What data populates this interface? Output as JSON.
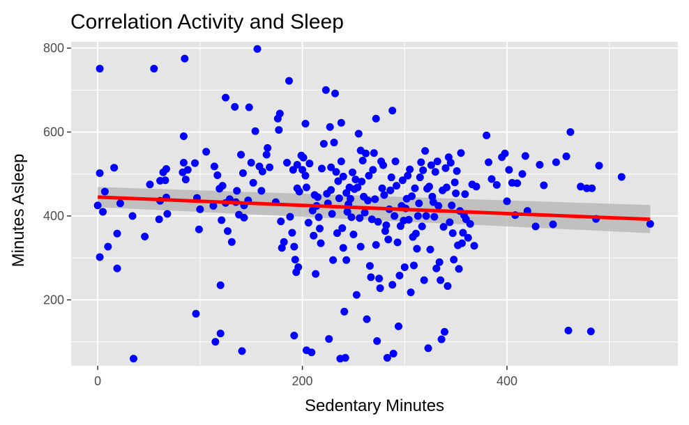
{
  "chart_data": {
    "type": "scatter",
    "title": "Correlation Activity and Sleep",
    "xlabel": "Sedentary Minutes",
    "ylabel": "Minutes Asleep",
    "xlim": [
      -26,
      567
    ],
    "ylim": [
      43,
      815
    ],
    "x_ticks": [
      0,
      200,
      400
    ],
    "x_tick_labels": [
      "0",
      "200",
      "400"
    ],
    "y_ticks": [
      200,
      400,
      600,
      800
    ],
    "y_tick_labels": [
      "200",
      "400",
      "600",
      "800"
    ],
    "grid": true,
    "panel_background": "#e5e5e5",
    "point_color": "#0000ff",
    "trend_color": "#ff0000",
    "ribbon_color": "#b3b3b3",
    "trend_line": {
      "type": "linear",
      "x": [
        0,
        540
      ],
      "y": [
        445,
        392
      ],
      "ci_lower": [
        421,
        359
      ],
      "ci_upper": [
        469,
        426
      ]
    },
    "points": [
      [
        2,
        751
      ],
      [
        2,
        502
      ],
      [
        2,
        302
      ],
      [
        0,
        425
      ],
      [
        5,
        410
      ],
      [
        7,
        458
      ],
      [
        10,
        327
      ],
      [
        16,
        515
      ],
      [
        19,
        358
      ],
      [
        19,
        275
      ],
      [
        22,
        430
      ],
      [
        34,
        400
      ],
      [
        35,
        60
      ],
      [
        46,
        351
      ],
      [
        51,
        475
      ],
      [
        55,
        751
      ],
      [
        60,
        392
      ],
      [
        61,
        484
      ],
      [
        61,
        436
      ],
      [
        64,
        504
      ],
      [
        66,
        485
      ],
      [
        67,
        512
      ],
      [
        67,
        444
      ],
      [
        68,
        405
      ],
      [
        83,
        504
      ],
      [
        84,
        590
      ],
      [
        84,
        527
      ],
      [
        85,
        775
      ],
      [
        86,
        487
      ],
      [
        88,
        510
      ],
      [
        95,
        526
      ],
      [
        96,
        167
      ],
      [
        97,
        443
      ],
      [
        99,
        368
      ],
      [
        100,
        416
      ],
      [
        106,
        553
      ],
      [
        113,
        424
      ],
      [
        114,
        518
      ],
      [
        115,
        100
      ],
      [
        117,
        497
      ],
      [
        119,
        465
      ],
      [
        120,
        235
      ],
      [
        120,
        120
      ],
      [
        121,
        390
      ],
      [
        122,
        472
      ],
      [
        125,
        682
      ],
      [
        125,
        431
      ],
      [
        127,
        364
      ],
      [
        129,
        440
      ],
      [
        131,
        338
      ],
      [
        134,
        660
      ],
      [
        135,
        433
      ],
      [
        136,
        460
      ],
      [
        138,
        403
      ],
      [
        140,
        546
      ],
      [
        141,
        78
      ],
      [
        142,
        502
      ],
      [
        143,
        396
      ],
      [
        143,
        425
      ],
      [
        147,
        437
      ],
      [
        148,
        659
      ],
      [
        150,
        527
      ],
      [
        152,
        479
      ],
      [
        154,
        602
      ],
      [
        156,
        798
      ],
      [
        158,
        518
      ],
      [
        160,
        460
      ],
      [
        161,
        506
      ],
      [
        165,
        546
      ],
      [
        166,
        562
      ],
      [
        168,
        516
      ],
      [
        174,
        433
      ],
      [
        176,
        632
      ],
      [
        177,
        605
      ],
      [
        178,
        644
      ],
      [
        179,
        387
      ],
      [
        180,
        324
      ],
      [
        182,
        338
      ],
      [
        185,
        527
      ],
      [
        187,
        722
      ],
      [
        188,
        398
      ],
      [
        190,
        360
      ],
      [
        191,
        510
      ],
      [
        192,
        115
      ],
      [
        192,
        327
      ],
      [
        193,
        296
      ],
      [
        194,
        266
      ],
      [
        195,
        522
      ],
      [
        195,
        466
      ],
      [
        196,
        278
      ],
      [
        197,
        458
      ],
      [
        199,
        544
      ],
      [
        200,
        510
      ],
      [
        201,
        539
      ],
      [
        203,
        620
      ],
      [
        203,
        496
      ],
      [
        204,
        80
      ],
      [
        204,
        468
      ],
      [
        206,
        384
      ],
      [
        207,
        525
      ],
      [
        209,
        75
      ],
      [
        210,
        413
      ],
      [
        211,
        353
      ],
      [
        212,
        450
      ],
      [
        213,
        262
      ],
      [
        214,
        424
      ],
      [
        215,
        445
      ],
      [
        216,
        397
      ],
      [
        217,
        370
      ],
      [
        218,
        335
      ],
      [
        219,
        513
      ],
      [
        221,
        572
      ],
      [
        223,
        700
      ],
      [
        224,
        453
      ],
      [
        225,
        430
      ],
      [
        226,
        107
      ],
      [
        227,
        612
      ],
      [
        228,
        516
      ],
      [
        228,
        462
      ],
      [
        229,
        405
      ],
      [
        230,
        295
      ],
      [
        231,
        575
      ],
      [
        232,
        692
      ],
      [
        233,
        505
      ],
      [
        234,
        359
      ],
      [
        235,
        483
      ],
      [
        236,
        442
      ],
      [
        237,
        60
      ],
      [
        238,
        622
      ],
      [
        238,
        530
      ],
      [
        239,
        371
      ],
      [
        240,
        324
      ],
      [
        240,
        494
      ],
      [
        241,
        172
      ],
      [
        242,
        62
      ],
      [
        243,
        295
      ],
      [
        243,
        455
      ],
      [
        244,
        410
      ],
      [
        245,
        428
      ],
      [
        246,
        468
      ],
      [
        247,
        441
      ],
      [
        248,
        397
      ],
      [
        249,
        504
      ],
      [
        250,
        356
      ],
      [
        251,
        464
      ],
      [
        252,
        487
      ],
      [
        253,
        212
      ],
      [
        254,
        468
      ],
      [
        255,
        596
      ],
      [
        256,
        395
      ],
      [
        257,
        556
      ],
      [
        257,
        327
      ],
      [
        258,
        482
      ],
      [
        259,
        532
      ],
      [
        260,
        446
      ],
      [
        261,
        408
      ],
      [
        262,
        549
      ],
      [
        263,
        154
      ],
      [
        264,
        437
      ],
      [
        265,
        496
      ],
      [
        266,
        281
      ],
      [
        267,
        254
      ],
      [
        268,
        392
      ],
      [
        269,
        510
      ],
      [
        270,
        550
      ],
      [
        271,
        440
      ],
      [
        272,
        632
      ],
      [
        272,
        331
      ],
      [
        273,
        102
      ],
      [
        274,
        386
      ],
      [
        275,
        251
      ],
      [
        276,
        228
      ],
      [
        277,
        530
      ],
      [
        278,
        466
      ],
      [
        279,
        521
      ],
      [
        280,
        450
      ],
      [
        281,
        364
      ],
      [
        282,
        378
      ],
      [
        283,
        62
      ],
      [
        284,
        344
      ],
      [
        285,
        416
      ],
      [
        286,
        461
      ],
      [
        287,
        492
      ],
      [
        288,
        651
      ],
      [
        288,
        236
      ],
      [
        289,
        72
      ],
      [
        290,
        400
      ],
      [
        291,
        530
      ],
      [
        292,
        472
      ],
      [
        293,
        337
      ],
      [
        294,
        137
      ],
      [
        295,
        258
      ],
      [
        296,
        376
      ],
      [
        297,
        424
      ],
      [
        298,
        485
      ],
      [
        299,
        389
      ],
      [
        300,
        278
      ],
      [
        301,
        418
      ],
      [
        302,
        441
      ],
      [
        303,
        496
      ],
      [
        304,
        391
      ],
      [
        305,
        511
      ],
      [
        306,
        218
      ],
      [
        307,
        447
      ],
      [
        308,
        350
      ],
      [
        309,
        282
      ],
      [
        310,
        466
      ],
      [
        311,
        358
      ],
      [
        312,
        322
      ],
      [
        313,
        400
      ],
      [
        314,
        430
      ],
      [
        315,
        492
      ],
      [
        316,
        528
      ],
      [
        317,
        375
      ],
      [
        318,
        509
      ],
      [
        319,
        247
      ],
      [
        320,
        555
      ],
      [
        321,
        400
      ],
      [
        322,
        465
      ],
      [
        323,
        85
      ],
      [
        324,
        470
      ],
      [
        325,
        320
      ],
      [
        326,
        521
      ],
      [
        327,
        446
      ],
      [
        328,
        433
      ],
      [
        329,
        398
      ],
      [
        330,
        505
      ],
      [
        331,
        275
      ],
      [
        332,
        530
      ],
      [
        333,
        424
      ],
      [
        334,
        290
      ],
      [
        335,
        247
      ],
      [
        336,
        106
      ],
      [
        337,
        461
      ],
      [
        338,
        374
      ],
      [
        339,
        124
      ],
      [
        340,
        514
      ],
      [
        341,
        468
      ],
      [
        342,
        233
      ],
      [
        343,
        540
      ],
      [
        344,
        385
      ],
      [
        345,
        527
      ],
      [
        346,
        425
      ],
      [
        347,
        359
      ],
      [
        348,
        296
      ],
      [
        349,
        480
      ],
      [
        350,
        454
      ],
      [
        351,
        507
      ],
      [
        352,
        330
      ],
      [
        353,
        274
      ],
      [
        354,
        412
      ],
      [
        355,
        550
      ],
      [
        356,
        335
      ],
      [
        357,
        360
      ],
      [
        358,
        402
      ],
      [
        359,
        452
      ],
      [
        360,
        392
      ],
      [
        362,
        348
      ],
      [
        364,
        381
      ],
      [
        366,
        475
      ],
      [
        368,
        329
      ],
      [
        370,
        470
      ],
      [
        380,
        592
      ],
      [
        382,
        528
      ],
      [
        385,
        488
      ],
      [
        390,
        474
      ],
      [
        395,
        540
      ],
      [
        398,
        549
      ],
      [
        400,
        435
      ],
      [
        402,
        510
      ],
      [
        405,
        479
      ],
      [
        408,
        402
      ],
      [
        410,
        478
      ],
      [
        415,
        500
      ],
      [
        418,
        543
      ],
      [
        420,
        412
      ],
      [
        428,
        375
      ],
      [
        432,
        522
      ],
      [
        436,
        473
      ],
      [
        445,
        380
      ],
      [
        448,
        528
      ],
      [
        458,
        542
      ],
      [
        460,
        127
      ],
      [
        462,
        600
      ],
      [
        472,
        470
      ],
      [
        478,
        466
      ],
      [
        482,
        125
      ],
      [
        483,
        466
      ],
      [
        487,
        393
      ],
      [
        490,
        520
      ],
      [
        512,
        493
      ],
      [
        540,
        381
      ]
    ]
  }
}
